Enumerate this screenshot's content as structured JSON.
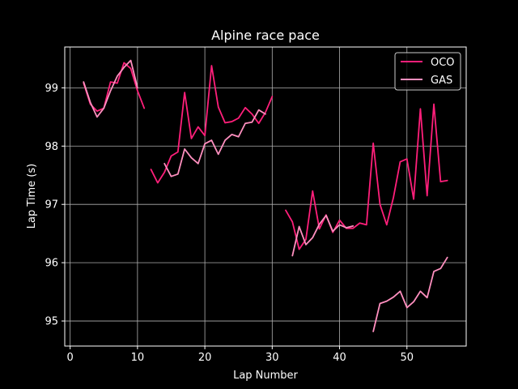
{
  "chart_data": {
    "type": "line",
    "title": "Alpine race pace",
    "xlabel": "Lap Number",
    "ylabel": "Lap Time (s)",
    "xlim": [
      -0.8,
      58.8
    ],
    "ylim": [
      94.57,
      99.7
    ],
    "xticks": [
      0,
      10,
      20,
      30,
      40,
      50
    ],
    "yticks": [
      95,
      96,
      97,
      98,
      99
    ],
    "grid": true,
    "legend_position": "top-right",
    "series": [
      {
        "name": "OCO",
        "color": "#ff1f7a",
        "segments": [
          [
            [
              2,
              99.08
            ],
            [
              3,
              98.72
            ],
            [
              4,
              98.6
            ],
            [
              5,
              98.65
            ],
            [
              6,
              99.1
            ],
            [
              7,
              99.08
            ],
            [
              8,
              99.43
            ],
            [
              9,
              99.33
            ],
            [
              10,
              98.95
            ],
            [
              11,
              98.65
            ]
          ],
          [
            [
              12,
              97.6
            ],
            [
              13,
              97.37
            ],
            [
              14,
              97.55
            ],
            [
              15,
              97.83
            ],
            [
              16,
              97.9
            ],
            [
              17,
              98.92
            ],
            [
              18,
              98.13
            ],
            [
              19,
              98.33
            ],
            [
              20,
              98.18
            ],
            [
              21,
              99.38
            ],
            [
              22,
              98.67
            ],
            [
              23,
              98.4
            ],
            [
              24,
              98.42
            ],
            [
              25,
              98.48
            ],
            [
              26,
              98.66
            ],
            [
              27,
              98.55
            ],
            [
              28,
              98.39
            ],
            [
              29,
              98.58
            ],
            [
              30,
              98.85
            ]
          ],
          [
            [
              32,
              96.9
            ],
            [
              33,
              96.7
            ],
            [
              34,
              96.23
            ],
            [
              35,
              96.4
            ],
            [
              36,
              97.23
            ],
            [
              37,
              96.58
            ],
            [
              38,
              96.82
            ],
            [
              39,
              96.52
            ],
            [
              40,
              96.73
            ],
            [
              41,
              96.59
            ],
            [
              42,
              96.59
            ],
            [
              43,
              96.68
            ],
            [
              44,
              96.65
            ],
            [
              45,
              98.05
            ],
            [
              46,
              97.0
            ],
            [
              47,
              96.65
            ],
            [
              48,
              97.12
            ],
            [
              49,
              97.73
            ],
            [
              50,
              97.78
            ],
            [
              51,
              97.09
            ],
            [
              52,
              98.64
            ],
            [
              53,
              97.15
            ],
            [
              54,
              98.72
            ],
            [
              55,
              97.39
            ],
            [
              56,
              97.41
            ]
          ]
        ]
      },
      {
        "name": "GAS",
        "color": "#ff8fbf",
        "segments": [
          [
            [
              2,
              99.1
            ],
            [
              3,
              98.75
            ],
            [
              4,
              98.5
            ],
            [
              5,
              98.65
            ],
            [
              6,
              98.95
            ],
            [
              7,
              99.2
            ],
            [
              8,
              99.35
            ],
            [
              9,
              99.47
            ],
            [
              10,
              99.0
            ]
          ],
          [
            [
              14,
              97.7
            ],
            [
              15,
              97.48
            ],
            [
              16,
              97.52
            ],
            [
              17,
              97.95
            ],
            [
              18,
              97.8
            ],
            [
              19,
              97.7
            ],
            [
              20,
              98.04
            ],
            [
              21,
              98.1
            ],
            [
              22,
              97.86
            ],
            [
              23,
              98.1
            ],
            [
              24,
              98.2
            ],
            [
              25,
              98.16
            ],
            [
              26,
              98.39
            ],
            [
              27,
              98.41
            ],
            [
              28,
              98.62
            ],
            [
              29,
              98.55
            ]
          ],
          [
            [
              33,
              96.12
            ],
            [
              34,
              96.62
            ],
            [
              35,
              96.31
            ],
            [
              36,
              96.43
            ],
            [
              37,
              96.66
            ],
            [
              38,
              96.81
            ],
            [
              39,
              96.54
            ],
            [
              40,
              96.65
            ],
            [
              41,
              96.6
            ],
            [
              42,
              96.63
            ]
          ],
          [
            [
              45,
              94.82
            ],
            [
              46,
              95.3
            ],
            [
              47,
              95.34
            ],
            [
              48,
              95.41
            ],
            [
              49,
              95.51
            ],
            [
              50,
              95.23
            ],
            [
              51,
              95.33
            ],
            [
              52,
              95.51
            ],
            [
              53,
              95.4
            ],
            [
              54,
              95.85
            ],
            [
              55,
              95.9
            ],
            [
              56,
              96.09
            ]
          ]
        ]
      }
    ]
  }
}
